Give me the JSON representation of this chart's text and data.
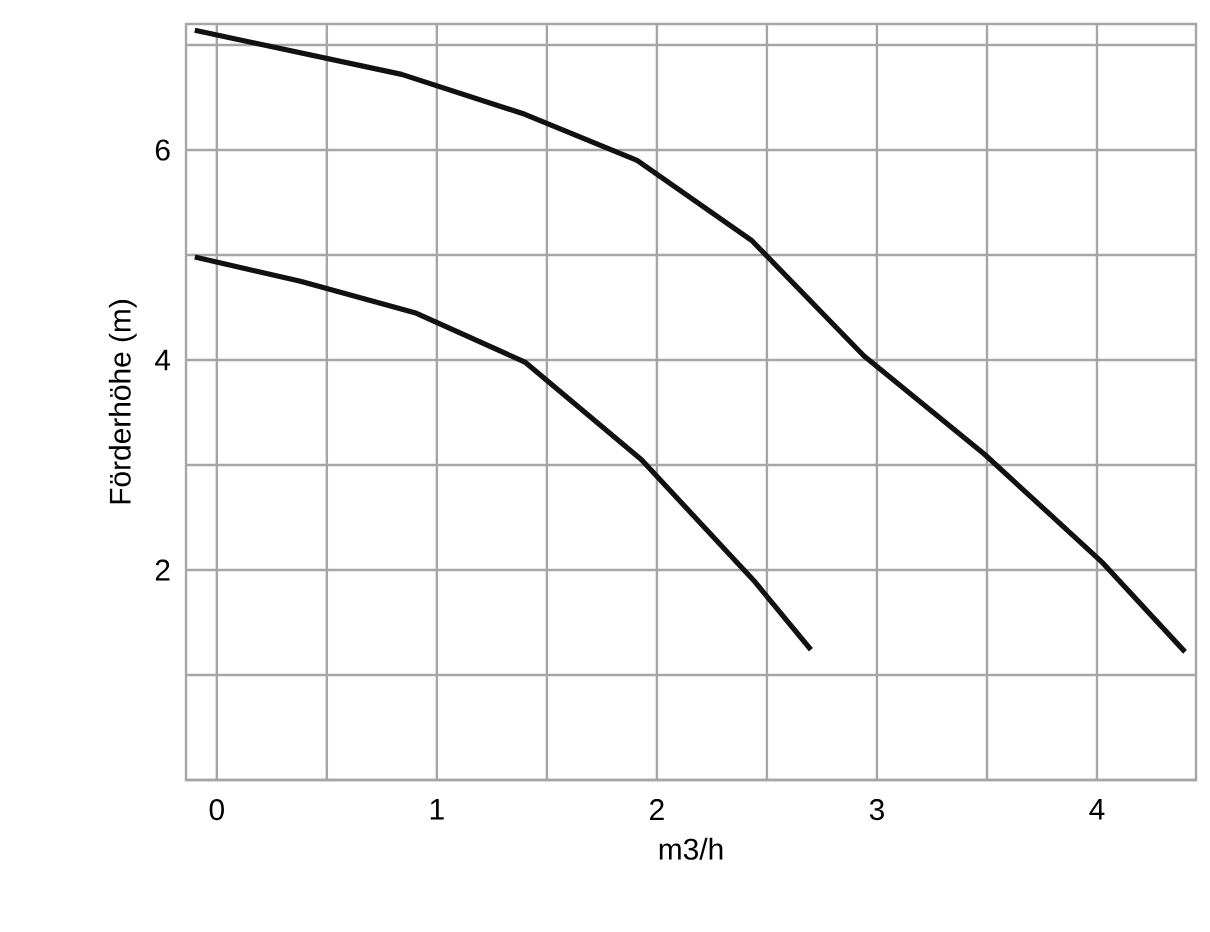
{
  "chart_data": {
    "type": "line",
    "xlabel": "m3/h",
    "ylabel": "Förderhöhe (m)",
    "xlim": [
      -0.14,
      4.45
    ],
    "ylim": [
      0,
      7.2
    ],
    "xticks": [
      0,
      {
        "value": 0.5,
        "label": null
      },
      1,
      {
        "value": 1.5,
        "label": null
      },
      2,
      {
        "value": 2.5,
        "label": null
      },
      3,
      {
        "value": 3.5,
        "label": null
      },
      4
    ],
    "yticks": [
      {
        "value": 0,
        "label": null
      },
      {
        "value": 1,
        "label": null
      },
      2,
      {
        "value": 3,
        "label": null
      },
      4,
      {
        "value": 5,
        "label": null
      },
      6,
      {
        "value": 7,
        "label": null
      }
    ],
    "grid": true,
    "marker": "none",
    "line_style": "solid",
    "series": [
      {
        "color": "#111111",
        "x": [
          -0.1,
          0.84,
          1.4,
          1.91,
          2.43,
          2.94,
          3.49,
          4.02,
          4.4
        ],
        "values": [
          7.14,
          6.72,
          6.34,
          5.9,
          5.14,
          4.04,
          3.1,
          2.08,
          1.22
        ]
      },
      {
        "color": "#111111",
        "x": [
          -0.1,
          0.38,
          0.9,
          1.4,
          1.93,
          2.44,
          2.7
        ],
        "values": [
          4.98,
          4.75,
          4.45,
          3.98,
          3.05,
          1.9,
          1.24
        ]
      }
    ]
  }
}
